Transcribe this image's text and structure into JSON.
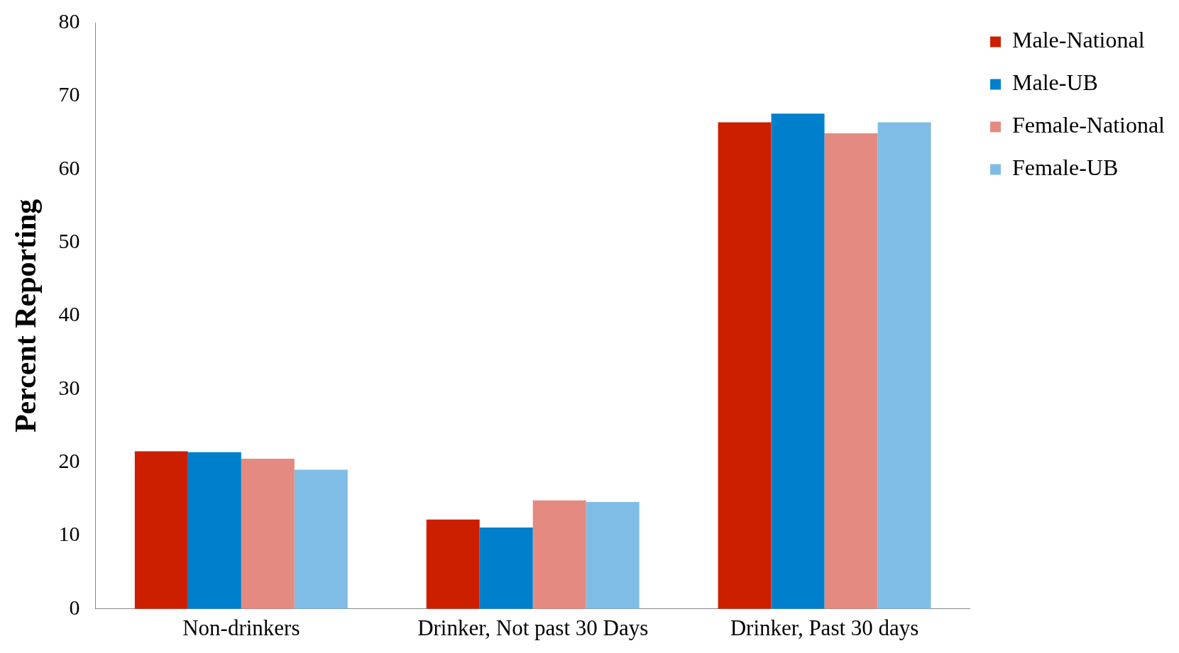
{
  "chart_data": {
    "type": "bar",
    "ylabel": "Percent Reporting",
    "categories": [
      "Non-drinkers",
      "Drinker, Not past 30 Days",
      "Drinker, Past 30 days"
    ],
    "series": [
      {
        "name": "Male-National",
        "color": "#cc1f00",
        "values": [
          21.5,
          12.2,
          66.4
        ]
      },
      {
        "name": "Male-UB",
        "color": "#0080cc",
        "values": [
          21.4,
          11.1,
          67.6
        ]
      },
      {
        "name": "Female-National",
        "color": "#e58a80",
        "values": [
          20.5,
          14.8,
          64.9
        ]
      },
      {
        "name": "Female-UB",
        "color": "#7fbde6",
        "values": [
          19.0,
          14.6,
          66.4
        ]
      }
    ],
    "ylim": [
      0,
      80
    ],
    "yticks": [
      0,
      10,
      20,
      30,
      40,
      50,
      60,
      70,
      80
    ],
    "grid": false,
    "legend": "right"
  }
}
